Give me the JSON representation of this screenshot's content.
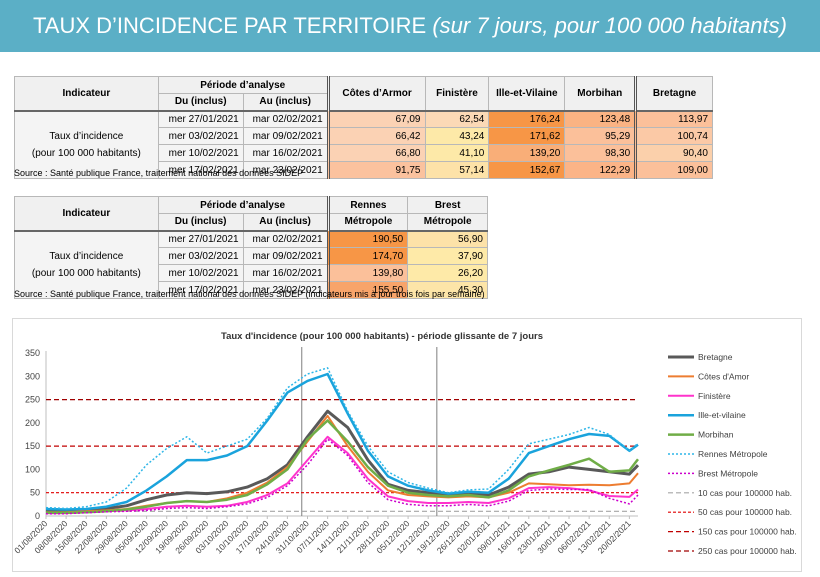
{
  "banner": {
    "title": "TAUX D’INCIDENCE PAR TERRITOIRE",
    "subtitle": "(sur 7 jours, pour 100 000 habitants)",
    "bg_color": "#5bafc6"
  },
  "table1": {
    "header_indicator": "Indicateur",
    "header_period": "Période d’analyse",
    "header_from": "Du (inclus)",
    "header_to": "Au (inclus)",
    "columns": [
      "Côtes d’Armor",
      "Finistère",
      "Ille-et-Vilaine",
      "Morbihan",
      "Bretagne"
    ],
    "indicator_line1": "Taux d’incidence",
    "indicator_line2": "(pour 100 000 habitants)",
    "rows": [
      {
        "from": "mer 27/01/2021",
        "to": "mar 02/02/2021",
        "values": [
          "67,09",
          "62,54",
          "176,24",
          "123,48",
          "113,97"
        ]
      },
      {
        "from": "mer 03/02/2021",
        "to": "mar 09/02/2021",
        "values": [
          "66,42",
          "43,24",
          "171,62",
          "95,29",
          "100,74"
        ]
      },
      {
        "from": "mer 10/02/2021",
        "to": "mar 16/02/2021",
        "values": [
          "66,80",
          "41,10",
          "139,20",
          "98,30",
          "90,40"
        ]
      },
      {
        "from": "mer 17/02/2021",
        "to": "mar 23/02/2021",
        "values": [
          "91,75",
          "57,14",
          "152,67",
          "122,29",
          "109,00"
        ]
      }
    ],
    "cell_colors": [
      [
        "#fbd2b4",
        "#fbd9b6",
        "#f79646",
        "#fab383",
        "#fbc09a"
      ],
      [
        "#fbd2b4",
        "#fde9a8",
        "#f79646",
        "#fbc09a",
        "#fbc9a6"
      ],
      [
        "#fbd2b4",
        "#fde9a8",
        "#f9ae78",
        "#fbc09a",
        "#fbd0ab"
      ],
      [
        "#fbc29e",
        "#fde2a8",
        "#f79646",
        "#fbb487",
        "#fbc09a"
      ]
    ],
    "source": "Source : Santé publique France, traitement national des données SIDEP"
  },
  "table2": {
    "header_indicator": "Indicateur",
    "header_period": "Période d’analyse",
    "header_from": "Du (inclus)",
    "header_to": "Au (inclus)",
    "col1_line1": "Rennes",
    "col1_line2": "Métropole",
    "col2_line1": "Brest",
    "col2_line2": "Métropole",
    "indicator_line1": "Taux d’incidence",
    "indicator_line2": "(pour 100 000 habitants)",
    "rows": [
      {
        "from": "mer 27/01/2021",
        "to": "mar 02/02/2021",
        "values": [
          "190,50",
          "56,90"
        ]
      },
      {
        "from": "mer 03/02/2021",
        "to": "mar 09/02/2021",
        "values": [
          "174,70",
          "37,90"
        ]
      },
      {
        "from": "mer 10/02/2021",
        "to": "mar 16/02/2021",
        "values": [
          "139,80",
          "26,20"
        ]
      },
      {
        "from": "mer 17/02/2021",
        "to": "mar 23/02/2021",
        "values": [
          "155,50",
          "45,30"
        ]
      }
    ],
    "cell_colors": [
      [
        "#f79646",
        "#fde2a8"
      ],
      [
        "#f79646",
        "#feeaa8"
      ],
      [
        "#fbc09a",
        "#feeaa8"
      ],
      [
        "#f8a46a",
        "#fde5a8"
      ]
    ],
    "source": "Source : Santé publique France, traitement national des données SIDEP (indicateurs mis à jour trois fois par semaine)"
  },
  "chart_data": {
    "type": "line",
    "title": "Taux d'incidence (pour 100 000 habitants) - période glissante de 7 jours",
    "xlabel": "",
    "ylabel": "",
    "ylim": [
      0,
      350
    ],
    "yticks": [
      0,
      50,
      100,
      150,
      200,
      250,
      300,
      350
    ],
    "grid": false,
    "legend_position": "right",
    "x_tick_labels": [
      "01/08/2020",
      "08/08/2020",
      "15/08/2020",
      "22/08/2020",
      "29/08/2020",
      "05/09/2020",
      "12/09/2020",
      "19/09/2020",
      "26/09/2020",
      "03/10/2020",
      "10/10/2020",
      "17/10/2020",
      "24/10/2020",
      "31/10/2020",
      "07/11/2020",
      "14/11/2020",
      "21/11/2020",
      "28/11/2020",
      "05/12/2020",
      "12/12/2020",
      "19/12/2020",
      "26/12/2020",
      "02/01/2021",
      "09/01/2021",
      "16/01/2021",
      "23/01/2021",
      "30/01/2021",
      "06/02/2021",
      "13/02/2021",
      "20/02/2021"
    ],
    "x": [
      "01/08/2020",
      "08/08/2020",
      "15/08/2020",
      "22/08/2020",
      "29/08/2020",
      "05/09/2020",
      "12/09/2020",
      "19/09/2020",
      "26/09/2020",
      "03/10/2020",
      "10/10/2020",
      "17/10/2020",
      "24/10/2020",
      "31/10/2020",
      "07/11/2020",
      "14/11/2020",
      "21/11/2020",
      "28/11/2020",
      "05/12/2020",
      "12/12/2020",
      "19/12/2020",
      "26/12/2020",
      "02/01/2021",
      "09/01/2021",
      "16/01/2021",
      "23/01/2021",
      "30/01/2021",
      "06/02/2021",
      "13/02/2021",
      "20/02/2021",
      "23/02/2021"
    ],
    "vertical_markers": [
      "29/10/2020",
      "15/12/2020"
    ],
    "series": [
      {
        "name": "Bretagne",
        "color": "#595959",
        "width": 3,
        "dash": "",
        "values": [
          12,
          10,
          12,
          16,
          22,
          35,
          45,
          50,
          48,
          52,
          62,
          80,
          110,
          170,
          225,
          190,
          120,
          68,
          55,
          50,
          47,
          48,
          45,
          62,
          90,
          95,
          105,
          100,
          95,
          90,
          109
        ]
      },
      {
        "name": "Côtes d'Amor",
        "color": "#ed7d31",
        "width": 2,
        "dash": "",
        "values": [
          8,
          8,
          10,
          12,
          15,
          22,
          28,
          32,
          30,
          38,
          50,
          72,
          105,
          160,
          215,
          150,
          95,
          55,
          45,
          42,
          40,
          42,
          40,
          50,
          70,
          68,
          66,
          67,
          66,
          70,
          92
        ]
      },
      {
        "name": "Finistère",
        "color": "#ff33cc",
        "width": 2,
        "dash": "",
        "values": [
          6,
          6,
          8,
          10,
          12,
          15,
          20,
          22,
          20,
          22,
          30,
          45,
          70,
          120,
          170,
          135,
          80,
          42,
          32,
          28,
          28,
          30,
          28,
          38,
          60,
          62,
          60,
          55,
          43,
          41,
          57
        ]
      },
      {
        "name": "Ille-et-vilaine",
        "color": "#1aa3dc",
        "width": 2.5,
        "dash": "",
        "values": [
          15,
          14,
          15,
          20,
          30,
          55,
          85,
          120,
          120,
          130,
          150,
          205,
          265,
          290,
          305,
          220,
          140,
          85,
          65,
          55,
          48,
          52,
          50,
          80,
          135,
          150,
          165,
          176,
          172,
          140,
          153
        ]
      },
      {
        "name": "Morbihan",
        "color": "#70ad47",
        "width": 2.5,
        "dash": "",
        "values": [
          7,
          7,
          8,
          10,
          14,
          20,
          28,
          32,
          30,
          35,
          45,
          68,
          100,
          165,
          205,
          160,
          105,
          65,
          50,
          45,
          42,
          45,
          40,
          55,
          85,
          98,
          110,
          123,
          95,
          98,
          122
        ]
      },
      {
        "name": "Rennes Métropole",
        "color": "#2eb6e8",
        "width": 1.5,
        "dash": "2,2",
        "values": [
          18,
          16,
          20,
          30,
          60,
          110,
          145,
          170,
          135,
          150,
          165,
          210,
          275,
          305,
          318,
          225,
          150,
          95,
          72,
          60,
          50,
          56,
          58,
          100,
          155,
          165,
          175,
          190,
          175,
          140,
          156
        ]
      },
      {
        "name": "Brest Métropole",
        "color": "#cc00cc",
        "width": 1.5,
        "dash": "2,2",
        "values": [
          5,
          5,
          7,
          9,
          10,
          12,
          16,
          18,
          16,
          20,
          26,
          40,
          65,
          110,
          165,
          130,
          72,
          35,
          25,
          22,
          22,
          25,
          22,
          32,
          55,
          58,
          57,
          57,
          38,
          26,
          45
        ]
      },
      {
        "name": "10 cas pour 100000 hab.",
        "color": "#a6a6a6",
        "width": 1.2,
        "dash": "5,3",
        "values": [
          10,
          10,
          10,
          10,
          10,
          10,
          10,
          10,
          10,
          10,
          10,
          10,
          10,
          10,
          10,
          10,
          10,
          10,
          10,
          10,
          10,
          10,
          10,
          10,
          10,
          10,
          10,
          10,
          10,
          10,
          10
        ]
      },
      {
        "name": "50 cas pour 100000 hab.",
        "color": "#e00000",
        "width": 1.2,
        "dash": "3,2",
        "values": [
          50,
          50,
          50,
          50,
          50,
          50,
          50,
          50,
          50,
          50,
          50,
          50,
          50,
          50,
          50,
          50,
          50,
          50,
          50,
          50,
          50,
          50,
          50,
          50,
          50,
          50,
          50,
          50,
          50,
          50,
          50
        ]
      },
      {
        "name": "150 cas pour 100000 hab.",
        "color": "#c00000",
        "width": 1.2,
        "dash": "5,3",
        "values": [
          150,
          150,
          150,
          150,
          150,
          150,
          150,
          150,
          150,
          150,
          150,
          150,
          150,
          150,
          150,
          150,
          150,
          150,
          150,
          150,
          150,
          150,
          150,
          150,
          150,
          150,
          150,
          150,
          150,
          150,
          150
        ]
      },
      {
        "name": "250 cas pour 100000 hab.",
        "color": "#a00000",
        "width": 1.2,
        "dash": "5,3",
        "values": [
          250,
          250,
          250,
          250,
          250,
          250,
          250,
          250,
          250,
          250,
          250,
          250,
          250,
          250,
          250,
          250,
          250,
          250,
          250,
          250,
          250,
          250,
          250,
          250,
          250,
          250,
          250,
          250,
          250,
          250,
          250
        ]
      }
    ]
  }
}
